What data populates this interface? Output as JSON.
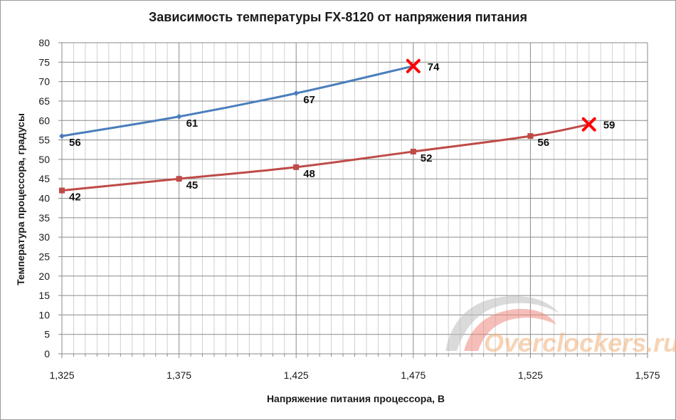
{
  "chart_data": {
    "type": "line",
    "title": "Зависимость температуры FX-8120 от напряжения питания",
    "xlabel": "Напряжение питания процессора, В",
    "ylabel": "Температура процессора, градусы",
    "xlim": [
      1.325,
      1.575
    ],
    "ylim": [
      0,
      80
    ],
    "x_ticks": [
      "1,325",
      "1,375",
      "1,425",
      "1,475",
      "1,525",
      "1,575"
    ],
    "y_ticks": [
      "0",
      "5",
      "10",
      "15",
      "20",
      "25",
      "30",
      "35",
      "40",
      "45",
      "50",
      "55",
      "60",
      "65",
      "70",
      "75",
      "80"
    ],
    "grid": true,
    "legend": "none",
    "series": [
      {
        "color": "#4a7ebb",
        "marker": "diamond",
        "points": [
          {
            "x": 1.325,
            "y": 56,
            "label": "56"
          },
          {
            "x": 1.375,
            "y": 61,
            "label": "61"
          },
          {
            "x": 1.425,
            "y": 67,
            "label": "67"
          },
          {
            "x": 1.475,
            "y": 74,
            "label": "74",
            "failure": true
          }
        ]
      },
      {
        "color": "#be4b48",
        "marker": "square",
        "points": [
          {
            "x": 1.325,
            "y": 42,
            "label": "42"
          },
          {
            "x": 1.375,
            "y": 45,
            "label": "45"
          },
          {
            "x": 1.425,
            "y": 48,
            "label": "48"
          },
          {
            "x": 1.475,
            "y": 52,
            "label": "52"
          },
          {
            "x": 1.525,
            "y": 56,
            "label": "56"
          },
          {
            "x": 1.55,
            "y": 59,
            "label": "59",
            "failure": true
          }
        ]
      }
    ],
    "failure_marker_color": "#ff0000"
  },
  "watermark": {
    "text": "Overclockers.ru"
  }
}
